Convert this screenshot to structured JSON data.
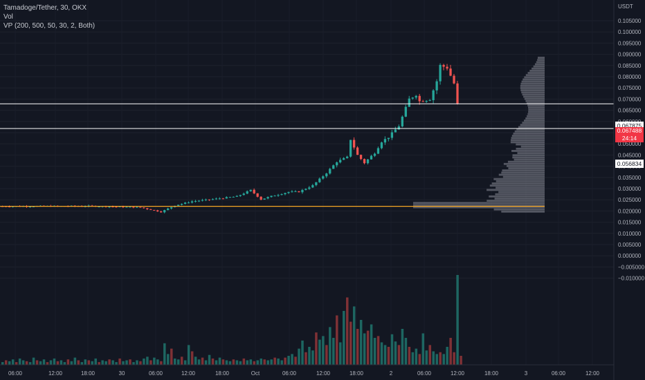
{
  "legend": {
    "symbol": "Tamadoge/Tether, 30, OKX",
    "vol": "Vol",
    "vp": "VP (200, 500, 50, 30, 2, Both)"
  },
  "axis": {
    "unit": "USDT"
  },
  "tags": {
    "resistance": "0.067875",
    "last_price": "0.067488",
    "countdown": "24:14",
    "support": "0.056834"
  },
  "colors": {
    "background": "#131722",
    "up": "#26a69a",
    "down": "#ef5350",
    "vol_up": "#1f6f68",
    "vol_down": "#8c3437",
    "level_line": "#ffffff",
    "poc_line": "#f5a623",
    "profile": "#6b6e78"
  },
  "chart_data": {
    "type": "candlestick",
    "y_ticks": [
      "0.105000",
      "0.100000",
      "0.095000",
      "0.090000",
      "0.085000",
      "0.080000",
      "0.075000",
      "0.070000",
      "0.065000",
      "0.060000",
      "0.055000",
      "0.050000",
      "0.045000",
      "0.040000",
      "0.035000",
      "0.030000",
      "0.025000",
      "0.020000",
      "0.015000",
      "0.010000",
      "0.005000",
      "0.000000",
      "−0.005000",
      "−0.010000"
    ],
    "x_ticks": [
      "06:00",
      "12:00",
      "18:00",
      "30",
      "06:00",
      "12:00",
      "18:00",
      "Oct",
      "06:00",
      "12:00",
      "18:00",
      "2",
      "06:00",
      "12:00",
      "18:00",
      "3",
      "06:00",
      "12:00"
    ],
    "horizontal_levels": [
      0.067875,
      0.056834
    ],
    "poc_level": 0.0221,
    "last_price": 0.067488,
    "price_knots": [
      [
        0,
        0.0221
      ],
      [
        26,
        0.0222
      ],
      [
        40,
        0.0216
      ],
      [
        46,
        0.0196
      ],
      [
        50,
        0.0225
      ],
      [
        55,
        0.0243
      ],
      [
        60,
        0.0251
      ],
      [
        68,
        0.0265
      ],
      [
        72,
        0.0293
      ],
      [
        75,
        0.0252
      ],
      [
        78,
        0.0266
      ],
      [
        83,
        0.0285
      ],
      [
        86,
        0.0286
      ],
      [
        90,
        0.0314
      ],
      [
        94,
        0.037
      ],
      [
        97,
        0.042
      ],
      [
        100,
        0.044
      ],
      [
        101,
        0.052
      ],
      [
        103,
        0.045
      ],
      [
        105,
        0.0415
      ],
      [
        108,
        0.046
      ],
      [
        110,
        0.051
      ],
      [
        112,
        0.053
      ],
      [
        115,
        0.058
      ],
      [
        118,
        0.07
      ],
      [
        120,
        0.072
      ],
      [
        121,
        0.069
      ],
      [
        124,
        0.07
      ],
      [
        126,
        0.078
      ],
      [
        127,
        0.085
      ],
      [
        129,
        0.084
      ],
      [
        131,
        0.077
      ],
      [
        132,
        0.0675
      ]
    ],
    "volume_pattern": [
      0.03,
      0.05,
      0.04,
      0.06,
      0.03,
      0.07,
      0.05,
      0.04,
      0.03,
      0.08,
      0.05,
      0.04,
      0.06,
      0.03,
      0.05,
      0.07,
      0.04,
      0.05,
      0.03,
      0.06,
      0.04,
      0.08,
      0.05,
      0.03,
      0.06,
      0.05,
      0.04,
      0.07,
      0.03,
      0.05,
      0.04,
      0.06,
      0.05,
      0.03,
      0.07,
      0.04,
      0.05,
      0.06,
      0.03,
      0.05,
      0.04,
      0.07,
      0.09,
      0.05,
      0.08,
      0.06,
      0.04,
      0.24,
      0.12,
      0.18,
      0.07,
      0.06,
      0.09,
      0.05,
      0.22,
      0.15,
      0.09,
      0.06,
      0.08,
      0.05,
      0.11,
      0.07,
      0.05,
      0.08,
      0.06,
      0.05,
      0.04,
      0.06,
      0.05,
      0.04,
      0.07,
      0.05,
      0.06,
      0.04,
      0.05,
      0.07,
      0.06,
      0.05,
      0.06,
      0.08,
      0.07,
      0.05,
      0.08,
      0.1,
      0.12,
      0.09,
      0.18,
      0.27,
      0.14,
      0.2,
      0.16,
      0.36,
      0.28,
      0.32,
      0.22,
      0.42,
      0.3,
      0.55,
      0.25,
      0.6,
      0.75,
      0.48,
      0.65,
      0.4,
      0.5,
      0.35,
      0.38,
      0.45,
      0.3,
      0.32,
      0.25,
      0.22,
      0.2,
      0.34,
      0.26,
      0.22,
      0.4,
      0.3,
      0.2,
      0.14,
      0.18,
      0.12,
      0.35,
      0.16,
      0.22,
      0.15,
      0.12,
      0.14,
      0.12,
      0.2,
      0.3,
      0.14,
      1.0,
      0.1
    ],
    "volume_profile_max_price": 0.0889,
    "volume_profile_min_price": 0.0192
  }
}
